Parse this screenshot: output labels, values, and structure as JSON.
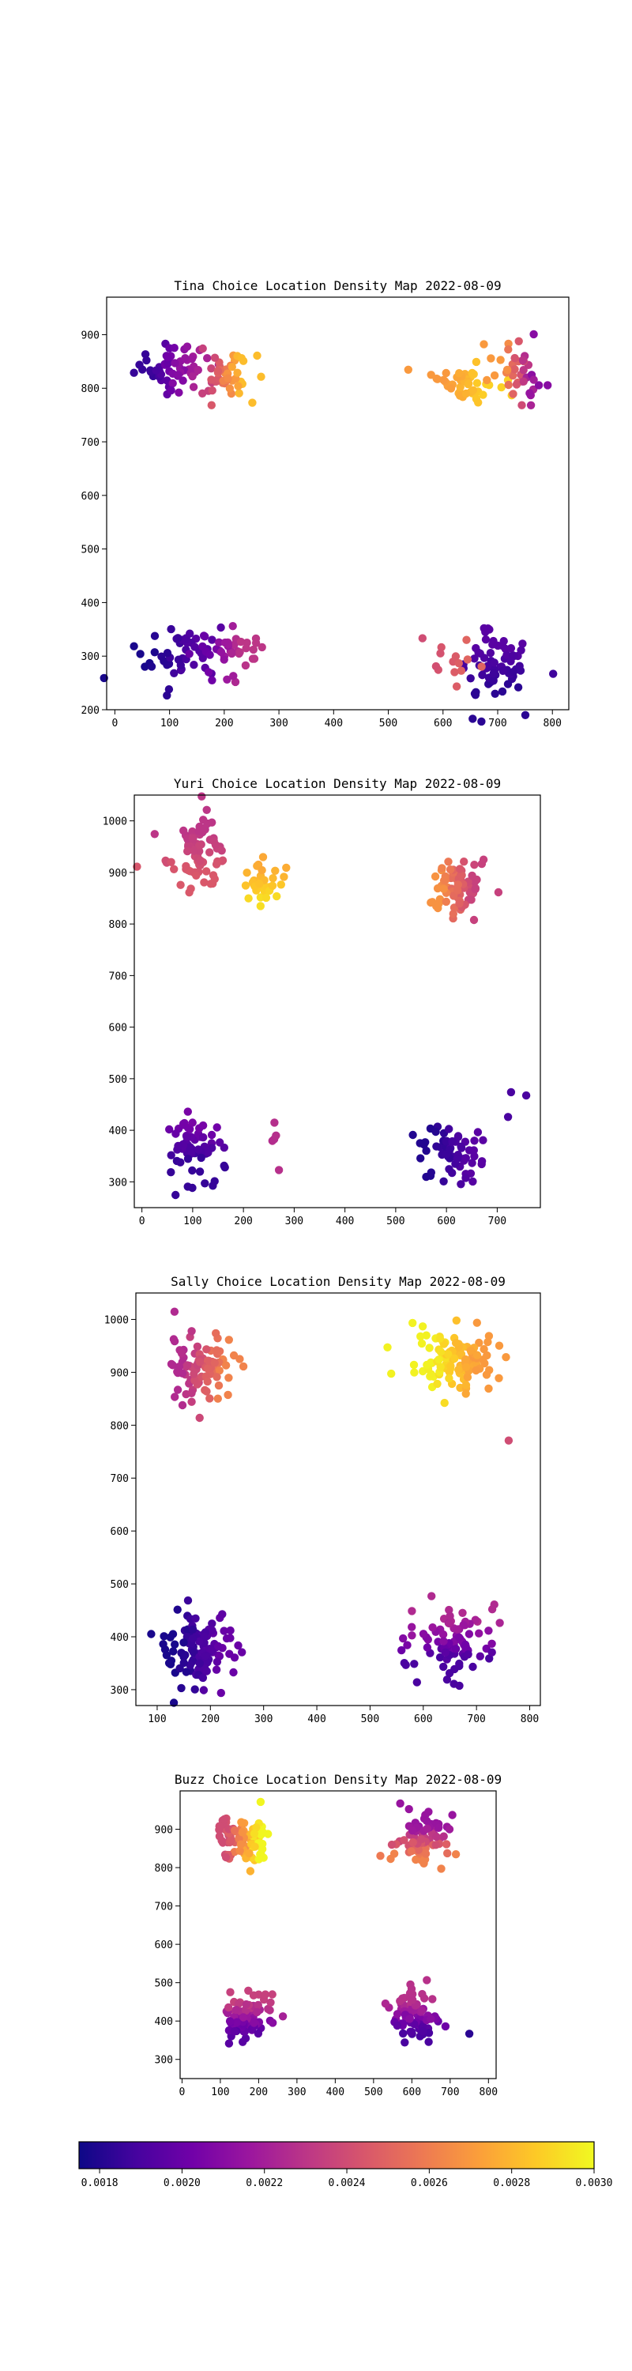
{
  "colormap": {
    "name": "plasma",
    "stops": [
      "#0d0887",
      "#46039f",
      "#7201a8",
      "#9c179e",
      "#bd3786",
      "#d8576b",
      "#ed7953",
      "#fb9f3a",
      "#fdca26",
      "#f0f921"
    ],
    "vmin": 0.00175,
    "vmax": 0.003,
    "ticks": [
      "0.0018",
      "0.0020",
      "0.0022",
      "0.0024",
      "0.0026",
      "0.0028",
      "0.0030"
    ]
  },
  "chart_data": [
    {
      "type": "scatter",
      "title": "Tina Choice Location Density Map 2022-08-09",
      "xlim": [
        -15,
        830
      ],
      "ylim": [
        200,
        970
      ],
      "xticks": [
        0,
        100,
        200,
        300,
        400,
        500,
        600,
        700,
        800
      ],
      "yticks": [
        200,
        300,
        400,
        500,
        600,
        700,
        800,
        900
      ],
      "clusters": [
        {
          "cx": 105,
          "cy": 840,
          "sx": 40,
          "sy": 25,
          "n": 60,
          "d": 0.00185,
          "d2": 0.00222,
          "dir": "x+"
        },
        {
          "cx": 200,
          "cy": 820,
          "sx": 30,
          "sy": 25,
          "n": 45,
          "d": 0.00235,
          "d2": 0.00282,
          "dir": "x+"
        },
        {
          "cx": 640,
          "cy": 810,
          "sx": 35,
          "sy": 25,
          "n": 45,
          "d": 0.0027,
          "d2": 0.00288,
          "dir": "x+"
        },
        {
          "cx": 740,
          "cy": 830,
          "sx": 30,
          "sy": 30,
          "n": 40,
          "d": 0.0027,
          "d2": 0.0021,
          "dir": "x+"
        },
        {
          "cx": 110,
          "cy": 305,
          "sx": 45,
          "sy": 35,
          "n": 45,
          "d": 0.00178,
          "d2": 0.00195,
          "dir": "x+"
        },
        {
          "cx": 200,
          "cy": 305,
          "sx": 35,
          "sy": 35,
          "n": 40,
          "d": 0.002,
          "d2": 0.0023,
          "dir": "x+"
        },
        {
          "cx": 690,
          "cy": 280,
          "sx": 40,
          "sy": 40,
          "n": 70,
          "d": 0.00195,
          "d2": 0.00182,
          "dir": "y-"
        },
        {
          "cx": 610,
          "cy": 300,
          "sx": 30,
          "sy": 30,
          "n": 14,
          "d": 0.0024,
          "d2": 0.0025,
          "dir": "x+"
        }
      ]
    },
    {
      "type": "scatter",
      "title": "Yuri Choice Location Density Map 2022-08-09",
      "xlim": [
        -15,
        785
      ],
      "ylim": [
        250,
        1050
      ],
      "xticks": [
        0,
        100,
        200,
        300,
        400,
        500,
        600,
        700
      ],
      "yticks": [
        300,
        400,
        500,
        600,
        700,
        800,
        900,
        1000
      ],
      "clusters": [
        {
          "cx": 110,
          "cy": 940,
          "sx": 35,
          "sy": 40,
          "n": 80,
          "d": 0.0023,
          "d2": 0.00245,
          "dir": "y-"
        },
        {
          "cx": 230,
          "cy": 880,
          "sx": 25,
          "sy": 30,
          "n": 35,
          "d": 0.00275,
          "d2": 0.00292,
          "dir": "y-"
        },
        {
          "cx": 620,
          "cy": 870,
          "sx": 35,
          "sy": 35,
          "n": 70,
          "d": 0.00268,
          "d2": 0.00235,
          "dir": "x+"
        },
        {
          "cx": 100,
          "cy": 375,
          "sx": 35,
          "sy": 35,
          "n": 60,
          "d": 0.00185,
          "d2": 0.00205,
          "dir": "y+"
        },
        {
          "cx": 260,
          "cy": 380,
          "sx": 10,
          "sy": 35,
          "n": 5,
          "d": 0.00225,
          "d2": 0.00228,
          "dir": "x+"
        },
        {
          "cx": 610,
          "cy": 355,
          "sx": 40,
          "sy": 35,
          "n": 60,
          "d": 0.0018,
          "d2": 0.00195,
          "dir": "x+"
        },
        {
          "cx": 730,
          "cy": 450,
          "sx": 15,
          "sy": 20,
          "n": 3,
          "d": 0.0019,
          "d2": 0.0019,
          "dir": "x+"
        }
      ]
    },
    {
      "type": "scatter",
      "title": "Sally Choice Location Density Map 2022-08-09",
      "xlim": [
        60,
        820
      ],
      "ylim": [
        270,
        1050
      ],
      "xticks": [
        100,
        200,
        300,
        400,
        500,
        600,
        700,
        800
      ],
      "yticks": [
        300,
        400,
        500,
        600,
        700,
        800,
        900,
        1000
      ],
      "clusters": [
        {
          "cx": 185,
          "cy": 910,
          "sx": 40,
          "sy": 35,
          "n": 90,
          "d": 0.00225,
          "d2": 0.00262,
          "dir": "x+"
        },
        {
          "cx": 660,
          "cy": 920,
          "sx": 45,
          "sy": 35,
          "n": 110,
          "d": 0.0027,
          "d2": 0.00298,
          "dir": "x-"
        },
        {
          "cx": 760,
          "cy": 770,
          "sx": 5,
          "sy": 5,
          "n": 1,
          "d": 0.0024,
          "d2": 0.0024,
          "dir": "x+"
        },
        {
          "cx": 180,
          "cy": 375,
          "sx": 45,
          "sy": 40,
          "n": 110,
          "d": 0.00178,
          "d2": 0.002,
          "dir": "x+"
        },
        {
          "cx": 660,
          "cy": 395,
          "sx": 45,
          "sy": 40,
          "n": 90,
          "d": 0.0019,
          "d2": 0.00225,
          "dir": "y+"
        }
      ]
    },
    {
      "type": "scatter",
      "title": "Buzz Choice Location Density Map 2022-08-09",
      "xlim": [
        -5,
        820
      ],
      "ylim": [
        250,
        1000
      ],
      "xticks": [
        0,
        100,
        200,
        300,
        400,
        500,
        600,
        700,
        800
      ],
      "yticks": [
        300,
        400,
        500,
        600,
        700,
        800,
        900
      ],
      "clusters": [
        {
          "cx": 160,
          "cy": 870,
          "sx": 40,
          "sy": 35,
          "n": 90,
          "d": 0.0024,
          "d2": 0.00299,
          "dir": "x+"
        },
        {
          "cx": 620,
          "cy": 870,
          "sx": 40,
          "sy": 40,
          "n": 80,
          "d": 0.00262,
          "d2": 0.00215,
          "dir": "y+"
        },
        {
          "cx": 170,
          "cy": 410,
          "sx": 35,
          "sy": 40,
          "n": 90,
          "d": 0.00195,
          "d2": 0.00235,
          "dir": "y+"
        },
        {
          "cx": 610,
          "cy": 410,
          "sx": 35,
          "sy": 40,
          "n": 80,
          "d": 0.00228,
          "d2": 0.0019,
          "dir": "y-"
        },
        {
          "cx": 750,
          "cy": 370,
          "sx": 3,
          "sy": 3,
          "n": 1,
          "d": 0.00182,
          "d2": 0.00182,
          "dir": "x+"
        }
      ]
    }
  ]
}
